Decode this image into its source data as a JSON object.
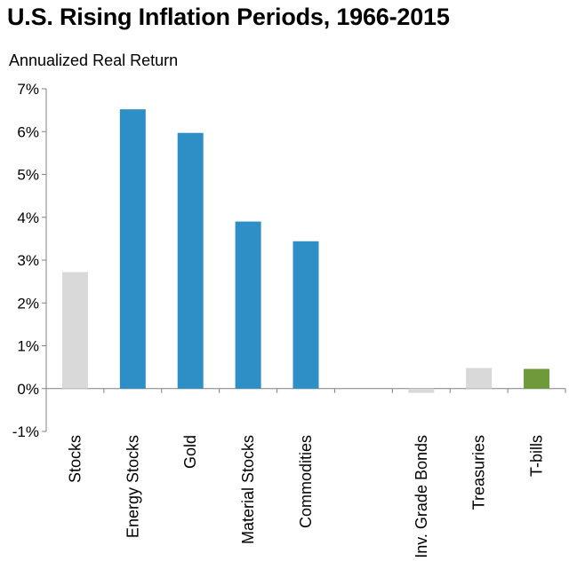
{
  "chart_data": {
    "type": "bar",
    "title": "U.S. Rising Inflation Periods, 1966-2015",
    "ylabel": "Annualized Real Return",
    "xlabel": "",
    "categories": [
      "Stocks",
      "Energy Stocks",
      "Gold",
      "Material Stocks",
      "Commodities",
      "",
      "Inv. Grade Bonds",
      "Treasuries",
      "T-bills"
    ],
    "values": [
      2.72,
      6.52,
      5.97,
      3.9,
      3.44,
      null,
      -0.1,
      0.48,
      0.46
    ],
    "colors": [
      "#d9d9d9",
      "#2e8fc6",
      "#2e8fc6",
      "#2e8fc6",
      "#2e8fc6",
      null,
      "#d9d9d9",
      "#d9d9d9",
      "#6e9a3a"
    ],
    "ylim": [
      -1,
      7
    ],
    "yticks": [
      "-1%",
      "0%",
      "1%",
      "2%",
      "3%",
      "4%",
      "5%",
      "6%",
      "7%"
    ],
    "grid": false,
    "legend": "none"
  }
}
